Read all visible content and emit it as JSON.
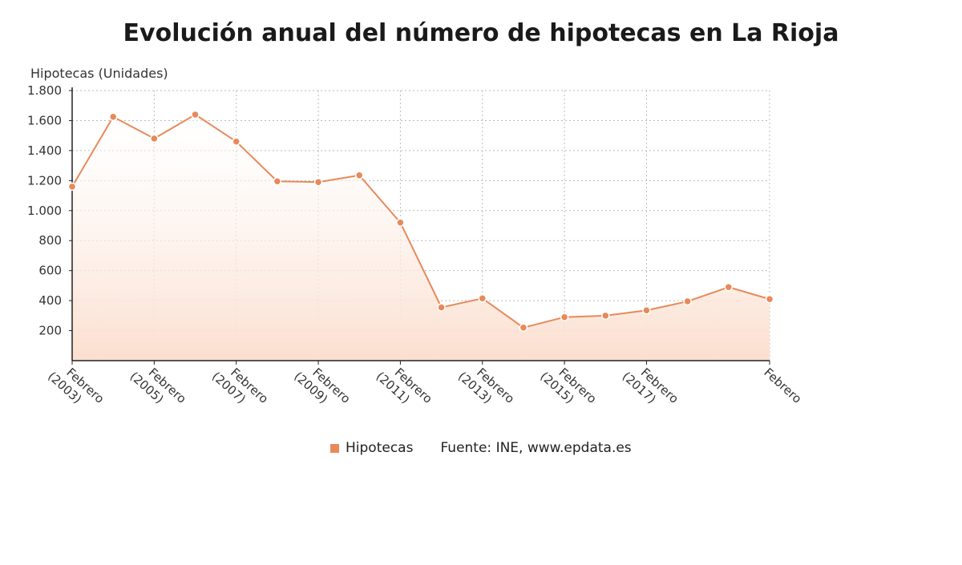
{
  "chart_data": {
    "type": "area",
    "title": "Evolución anual del número de hipotecas en La Rioja",
    "ylabel": "Hipotecas (Unidades)",
    "xlabel": "",
    "ylim": [
      0,
      1800
    ],
    "yticks": [
      200,
      400,
      600,
      800,
      1000,
      1200,
      1400,
      1600,
      1800
    ],
    "ytick_labels": [
      "200",
      "400",
      "600",
      "800",
      "1.000",
      "1.200",
      "1.400",
      "1.600",
      "1.800"
    ],
    "x_tick_labels": [
      {
        "index": 0,
        "line1": "Febrero",
        "line2": "(2003)"
      },
      {
        "index": 2,
        "line1": "Febrero",
        "line2": "(2005)"
      },
      {
        "index": 4,
        "line1": "Febrero",
        "line2": "(2007)"
      },
      {
        "index": 6,
        "line1": "Febrero",
        "line2": "(2009)"
      },
      {
        "index": 8,
        "line1": "Febrero",
        "line2": "(2011)"
      },
      {
        "index": 10,
        "line1": "Febrero",
        "line2": "(2013)"
      },
      {
        "index": 12,
        "line1": "Febrero",
        "line2": "(2015)"
      },
      {
        "index": 14,
        "line1": "Febrero",
        "line2": "(2017)"
      },
      {
        "index": 17,
        "line1": "Febrero",
        "line2": ""
      }
    ],
    "series": [
      {
        "name": "Hipotecas",
        "color": "#e8895a",
        "values": [
          1160,
          1625,
          1480,
          1640,
          1460,
          1195,
          1190,
          1235,
          920,
          355,
          415,
          220,
          290,
          300,
          335,
          395,
          490,
          410
        ]
      }
    ],
    "grid": true,
    "legend_position": "bottom"
  },
  "legend": {
    "series_label": "Hipotecas",
    "source": "Fuente: INE, www.epdata.es"
  },
  "colors": {
    "line": "#e8895a",
    "area_top": "#fde9dd",
    "area_bottom": "#fbe1d2",
    "grid": "#bbbbbb"
  }
}
